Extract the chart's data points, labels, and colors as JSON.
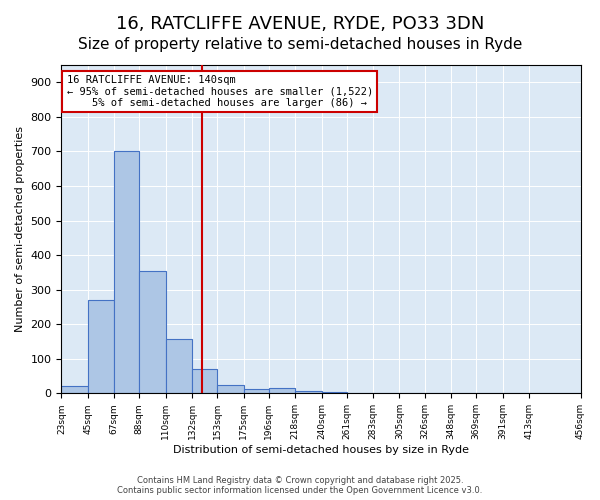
{
  "title1": "16, RATCLIFFE AVENUE, RYDE, PO33 3DN",
  "title2": "Size of property relative to semi-detached houses in Ryde",
  "xlabel": "Distribution of semi-detached houses by size in Ryde",
  "ylabel": "Number of semi-detached properties",
  "bar_values": [
    20,
    270,
    700,
    353,
    157,
    70,
    25,
    12,
    15,
    8,
    5,
    0,
    0,
    0,
    0,
    0,
    0,
    0,
    0
  ],
  "bin_edges": [
    23,
    45,
    67,
    88,
    110,
    132,
    153,
    175,
    196,
    218,
    240,
    261,
    283,
    305,
    326,
    348,
    369,
    391,
    413,
    456
  ],
  "tick_labels": [
    "23sqm",
    "45sqm",
    "67sqm",
    "88sqm",
    "110sqm",
    "132sqm",
    "153sqm",
    "175sqm",
    "196sqm",
    "218sqm",
    "240sqm",
    "261sqm",
    "283sqm",
    "305sqm",
    "326sqm",
    "348sqm",
    "369sqm",
    "391sqm",
    "413sqm",
    "456sqm"
  ],
  "bar_color": "#adc6e5",
  "bar_edge_color": "#4472c4",
  "vline_x": 140,
  "vline_color": "#cc0000",
  "annotation_box_text": "16 RATCLIFFE AVENUE: 140sqm\n← 95% of semi-detached houses are smaller (1,522)\n    5% of semi-detached houses are larger (86) →",
  "annotation_box_color": "#cc0000",
  "ylim": [
    0,
    950
  ],
  "yticks": [
    0,
    100,
    200,
    300,
    400,
    500,
    600,
    700,
    800,
    900
  ],
  "background_color": "#dce9f5",
  "footer_text": "Contains HM Land Registry data © Crown copyright and database right 2025.\nContains public sector information licensed under the Open Government Licence v3.0.",
  "title1_fontsize": 13,
  "title2_fontsize": 11
}
